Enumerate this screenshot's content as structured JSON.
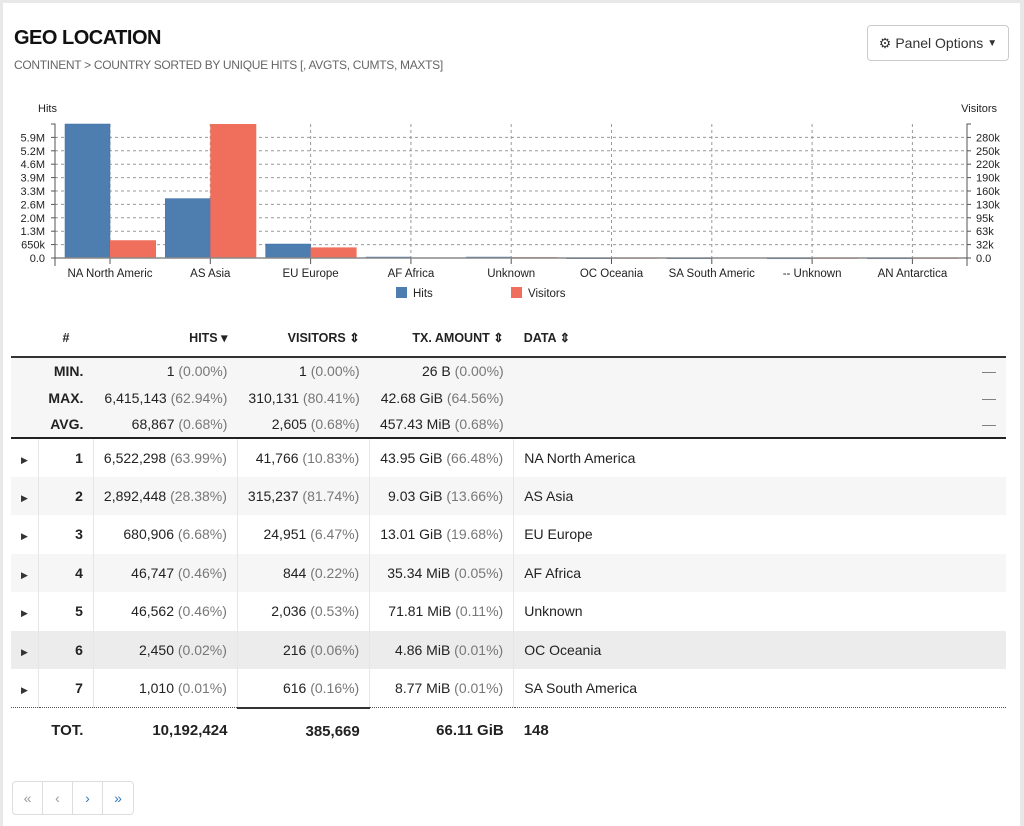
{
  "panel": {
    "title": "GEO LOCATION",
    "subtitle": "CONTINENT > COUNTRY SORTED BY UNIQUE HITS [, AVGTS, CUMTS, MAXTS]",
    "options_label": "Panel Options"
  },
  "chart_data": {
    "type": "bar",
    "categories": [
      "NA North America",
      "AS Asia",
      "EU Europe",
      "AF Africa",
      "Unknown",
      "OC Oceania",
      "SA South America",
      "-- Unknown",
      "AN Antarctica"
    ],
    "category_labels": [
      "NA North Americ",
      "AS Asia",
      "EU Europe",
      "AF Africa",
      "Unknown",
      "OC Oceania",
      "SA South Americ",
      "-- Unknown",
      "AN Antarctica"
    ],
    "series": [
      {
        "name": "Hits",
        "axis": "left",
        "color": "#4e7db0",
        "values": [
          6522298,
          2892448,
          680906,
          46747,
          46562,
          2450,
          1010,
          2,
          1
        ]
      },
      {
        "name": "Visitors",
        "axis": "right",
        "color": "#ef6f5c",
        "values": [
          41766,
          315237,
          24951,
          844,
          2036,
          216,
          616,
          2,
          1
        ]
      }
    ],
    "ylabel_left": "Hits",
    "ylabel_right": "Visitors",
    "ylim_left": [
      0,
      6522298
    ],
    "ylim_right": [
      0,
      315237
    ],
    "yticks_left": [
      "0.0",
      "650k",
      "1.3M",
      "2.0M",
      "2.6M",
      "3.3M",
      "3.9M",
      "4.6M",
      "5.2M",
      "5.9M"
    ],
    "yticks_right": [
      "0.0",
      "32k",
      "63k",
      "95k",
      "130k",
      "160k",
      "190k",
      "220k",
      "250k",
      "280k"
    ],
    "grid": true,
    "legend": "bottom"
  },
  "table": {
    "headers": {
      "num": "#",
      "hits": "HITS",
      "visitors": "VISITORS",
      "tx": "TX. AMOUNT",
      "data": "DATA"
    },
    "sort_icons": {
      "hits": "▾",
      "visitors": "⇕",
      "tx": "⇕",
      "data": "⇕"
    },
    "summary": [
      {
        "label": "MIN.",
        "hits": "1",
        "hits_pct": "(0.00%)",
        "visitors": "1",
        "visitors_pct": "(0.00%)",
        "tx": "26 B",
        "tx_pct": "(0.00%)",
        "dash": "—"
      },
      {
        "label": "MAX.",
        "hits": "6,415,143",
        "hits_pct": "(62.94%)",
        "visitors": "310,131",
        "visitors_pct": "(80.41%)",
        "tx": "42.68 GiB",
        "tx_pct": "(64.56%)",
        "dash": "—"
      },
      {
        "label": "AVG.",
        "hits": "68,867",
        "hits_pct": "(0.68%)",
        "visitors": "2,605",
        "visitors_pct": "(0.68%)",
        "tx": "457.43 MiB",
        "tx_pct": "(0.68%)",
        "dash": "—"
      }
    ],
    "rows": [
      {
        "num": "1",
        "hits": "6,522,298",
        "hits_pct": "(63.99%)",
        "visitors": "41,766",
        "visitors_pct": "(10.83%)",
        "tx": "43.95 GiB",
        "tx_pct": "(66.48%)",
        "data": "NA North America"
      },
      {
        "num": "2",
        "hits": "2,892,448",
        "hits_pct": "(28.38%)",
        "visitors": "315,237",
        "visitors_pct": "(81.74%)",
        "tx": "9.03 GiB",
        "tx_pct": "(13.66%)",
        "data": "AS Asia"
      },
      {
        "num": "3",
        "hits": "680,906",
        "hits_pct": "(6.68%)",
        "visitors": "24,951",
        "visitors_pct": "(6.47%)",
        "tx": "13.01 GiB",
        "tx_pct": "(19.68%)",
        "data": "EU Europe"
      },
      {
        "num": "4",
        "hits": "46,747",
        "hits_pct": "(0.46%)",
        "visitors": "844",
        "visitors_pct": "(0.22%)",
        "tx": "35.34 MiB",
        "tx_pct": "(0.05%)",
        "data": "AF Africa"
      },
      {
        "num": "5",
        "hits": "46,562",
        "hits_pct": "(0.46%)",
        "visitors": "2,036",
        "visitors_pct": "(0.53%)",
        "tx": "71.81 MiB",
        "tx_pct": "(0.11%)",
        "data": "Unknown"
      },
      {
        "num": "6",
        "hits": "2,450",
        "hits_pct": "(0.02%)",
        "visitors": "216",
        "visitors_pct": "(0.06%)",
        "tx": "4.86 MiB",
        "tx_pct": "(0.01%)",
        "data": "OC Oceania"
      },
      {
        "num": "7",
        "hits": "1,010",
        "hits_pct": "(0.01%)",
        "visitors": "616",
        "visitors_pct": "(0.16%)",
        "tx": "8.77 MiB",
        "tx_pct": "(0.01%)",
        "data": "SA South America"
      }
    ],
    "total": {
      "label": "TOT.",
      "hits": "10,192,424",
      "visitors": "385,669",
      "tx": "66.11 GiB",
      "data": "148"
    }
  },
  "pagination": {
    "first": "«",
    "prev": "‹",
    "next": "›",
    "last": "»"
  }
}
